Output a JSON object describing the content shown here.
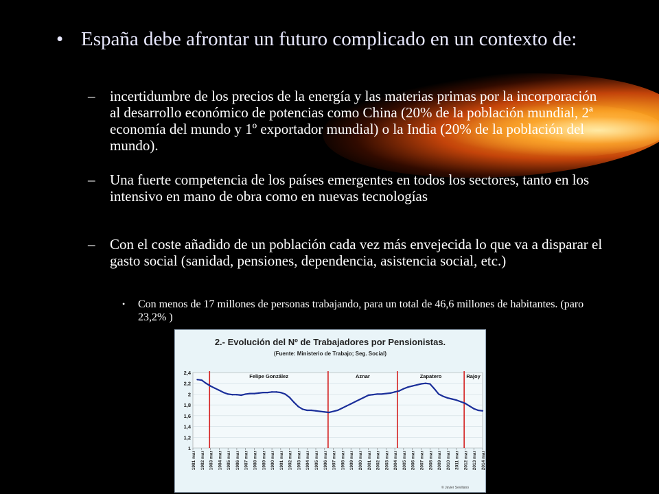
{
  "slide": {
    "title": "España debe afrontar un futuro complicado en un contexto de:",
    "items": [
      "incertidumbre de los precios de la energía y las materias primas por la incorporación al desarrollo económico de potencias como China (20% de la población mundial, 2ª economía del mundo y 1º exportador mundial) o la India (20% de la población del mundo).",
      "Una fuerte competencia de los países emergentes en todos los sectores, tanto en los intensivo en mano de obra como en nuevas tecnologías",
      "Con el coste añadido de un población cada vez más envejecida lo que va a disparar el gasto social (sanidad, pensiones, dependencia, asistencia social, etc.)"
    ],
    "subitem": "Con menos de 17 millones de personas trabajando, para un total de 46,6 millones de habitantes. (paro 23,2% )"
  },
  "chart_data": {
    "type": "line",
    "title": "2.- Evolución del Nº de Trabajadores por Pensionistas.",
    "subtitle": "(Fuente: Ministerio de Trabajo; Seg. Social)",
    "watermark": "© Javier Sevillano",
    "ylim": [
      1,
      2.4
    ],
    "yticks": [
      "2,4",
      "2,2",
      "2",
      "1,8",
      "1,6",
      "1,4",
      "1,2",
      "1"
    ],
    "xticks": [
      "1981 mar",
      "1982 mar",
      "1983 mar",
      "1984 mar",
      "1985 mar",
      "1986 mar",
      "1987 mar",
      "1988 mar",
      "1989 mar",
      "1990 mar",
      "1991 mar",
      "1992 mar",
      "1993 mar",
      "1994 mar",
      "1995 mar",
      "1996 mar",
      "1997 mar",
      "1998 mar",
      "1999 mar",
      "2000 mar",
      "2001 mar",
      "2002 mar",
      "2003 mar",
      "2004 mar",
      "2005 mar",
      "2006 mar",
      "2007 mar",
      "2008 mar",
      "2009 mar",
      "2010 mar",
      "2011 mar",
      "2012 mar",
      "2013 mar",
      "2014 mar"
    ],
    "periods": [
      {
        "label": "Felipe González",
        "start": 1982.9
      },
      {
        "label": "Aznar",
        "start": 1996.4
      },
      {
        "label": "Zapatero",
        "start": 2004.3
      },
      {
        "label": "Rajoy",
        "start": 2011.9
      }
    ],
    "x": [
      1981.5,
      1982,
      1982.5,
      1983,
      1983.5,
      1984,
      1984.5,
      1985,
      1985.5,
      1986,
      1986.5,
      1987,
      1987.5,
      1988,
      1988.5,
      1989,
      1989.5,
      1990,
      1990.5,
      1991,
      1991.5,
      1992,
      1992.5,
      1993,
      1993.5,
      1994,
      1994.5,
      1995,
      1995.5,
      1996,
      1996.5,
      1997,
      1997.5,
      1998,
      1998.5,
      1999,
      1999.5,
      2000,
      2000.5,
      2001,
      2001.5,
      2002,
      2002.5,
      2003,
      2003.5,
      2004,
      2004.5,
      2005,
      2005.5,
      2006,
      2006.5,
      2007,
      2007.5,
      2008,
      2008.5,
      2009,
      2009.5,
      2010,
      2010.5,
      2011,
      2011.5,
      2012,
      2012.5,
      2013,
      2013.5,
      2014
    ],
    "values": [
      2.27,
      2.26,
      2.2,
      2.15,
      2.11,
      2.07,
      2.03,
      2.0,
      1.99,
      1.99,
      1.98,
      2.0,
      2.01,
      2.01,
      2.02,
      2.03,
      2.03,
      2.04,
      2.04,
      2.03,
      2.0,
      1.94,
      1.85,
      1.77,
      1.72,
      1.7,
      1.7,
      1.69,
      1.68,
      1.67,
      1.66,
      1.68,
      1.7,
      1.74,
      1.78,
      1.82,
      1.86,
      1.9,
      1.94,
      1.98,
      1.99,
      2.0,
      2.0,
      2.01,
      2.02,
      2.04,
      2.06,
      2.1,
      2.13,
      2.15,
      2.17,
      2.19,
      2.2,
      2.19,
      2.1,
      2.0,
      1.96,
      1.93,
      1.91,
      1.89,
      1.86,
      1.83,
      1.78,
      1.73,
      1.7,
      1.69
    ]
  }
}
